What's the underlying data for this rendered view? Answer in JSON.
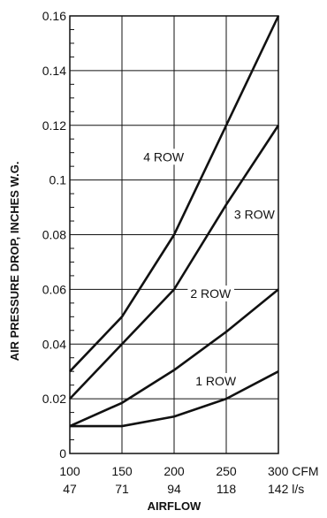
{
  "chart_data": {
    "type": "line",
    "title": "",
    "xlabel": "AIRFLOW",
    "ylabel": "AIR PRESSURE DROP, INCHES W.G.",
    "x": [
      100,
      150,
      200,
      250,
      300
    ],
    "xlim": [
      100,
      300
    ],
    "ylim": [
      0,
      0.16
    ],
    "x_tick_labels_cfm": [
      "100",
      "150",
      "200",
      "250",
      "300 CFM"
    ],
    "x_tick_labels_ls": [
      "47",
      "71",
      "94",
      "118",
      "142 l/s"
    ],
    "y_ticks": [
      0,
      0.02,
      0.04,
      0.06,
      0.08,
      0.1,
      0.12,
      0.14,
      0.16
    ],
    "y_tick_labels": [
      "0",
      "0.02",
      "0.04",
      "0.06",
      "0.08",
      "0.1",
      "0.12",
      "0.14",
      "0.16"
    ],
    "grid": true,
    "series": [
      {
        "name": "1 ROW",
        "values": [
          0.01,
          0.01,
          0.0135,
          0.02,
          0.03
        ],
        "label_at": [
          240,
          0.0265
        ]
      },
      {
        "name": "2 ROW",
        "values": [
          0.01,
          0.0185,
          0.0305,
          0.0445,
          0.06
        ],
        "label_at": [
          235,
          0.0585
        ]
      },
      {
        "name": "3 ROW",
        "values": [
          0.02,
          0.04,
          0.06,
          0.091,
          0.12
        ],
        "label_at": [
          277,
          0.0875
        ]
      },
      {
        "name": "4 ROW",
        "values": [
          0.03,
          0.05,
          0.08,
          0.12,
          0.16
        ],
        "label_at": [
          190,
          0.1085
        ]
      }
    ]
  }
}
